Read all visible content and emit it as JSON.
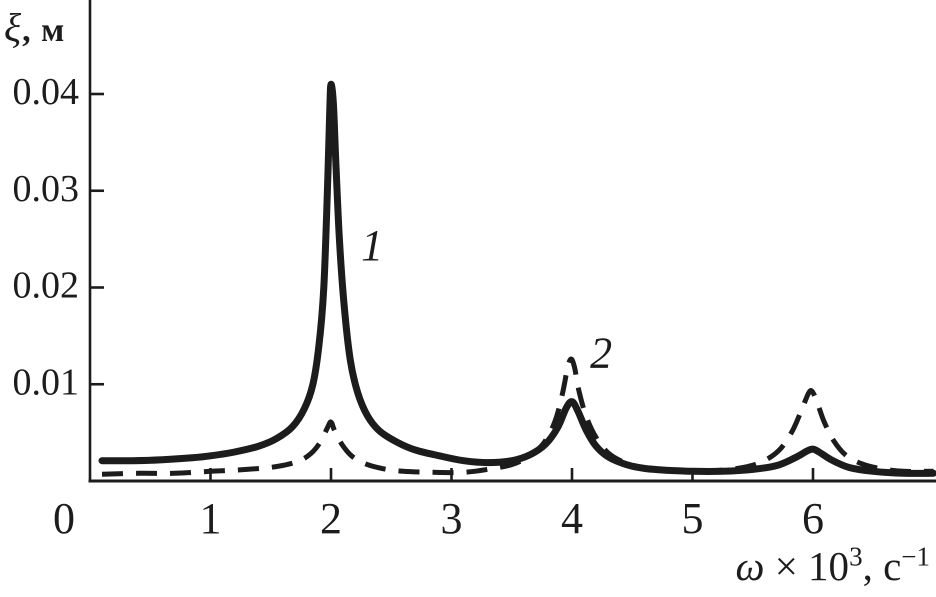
{
  "figure": {
    "background": "#ffffff",
    "ink_color": "#1c1c1c"
  },
  "chart_data": {
    "type": "line",
    "title": "",
    "xlabel": "ω × 10³, с⁻¹",
    "ylabel": "ξ, м",
    "xlabel_parts": [
      {
        "t": "ω"
      },
      {
        "t": " × 10"
      },
      {
        "t": "3"
      },
      {
        "t": ", с"
      },
      {
        "t": "−1"
      }
    ],
    "ylabel_parts": [
      {
        "t": "ξ"
      },
      {
        "t": ", м"
      }
    ],
    "xlim": [
      0,
      7.02
    ],
    "ylim": [
      0,
      0.0497
    ],
    "x_ticks": [
      0,
      1,
      2,
      3,
      4,
      5,
      6
    ],
    "x_tick_labels": [
      "0",
      "1",
      "2",
      "3",
      "4",
      "5",
      "6"
    ],
    "y_ticks": [
      0.01,
      0.02,
      0.03,
      0.04
    ],
    "y_tick_labels": [
      "0.01",
      "0.02",
      "0.03",
      "0.04"
    ],
    "grid": false,
    "legend_position": "none",
    "annotations": [
      {
        "text": "1",
        "x": 2.25,
        "y": 0.0245
      },
      {
        "text": "2",
        "x": 4.15,
        "y": 0.0134
      }
    ],
    "series": [
      {
        "name": "1",
        "style": "solid",
        "peaks": [
          {
            "x": 2.0,
            "y": 0.041
          },
          {
            "x": 4.0,
            "y": 0.0082
          },
          {
            "x": 6.0,
            "y": 0.0033
          }
        ],
        "points": [
          [
            0.1,
            0.0021
          ],
          [
            0.35,
            0.0021
          ],
          [
            0.6,
            0.0022
          ],
          [
            0.85,
            0.0024
          ],
          [
            1.0,
            0.0026
          ],
          [
            1.2,
            0.003
          ],
          [
            1.4,
            0.0036
          ],
          [
            1.55,
            0.0044
          ],
          [
            1.68,
            0.0056
          ],
          [
            1.78,
            0.0075
          ],
          [
            1.85,
            0.01
          ],
          [
            1.9,
            0.014
          ],
          [
            1.94,
            0.02
          ],
          [
            1.97,
            0.03
          ],
          [
            1.99,
            0.0385
          ],
          [
            2.0,
            0.041
          ],
          [
            2.02,
            0.039
          ],
          [
            2.04,
            0.033
          ],
          [
            2.07,
            0.025
          ],
          [
            2.11,
            0.018
          ],
          [
            2.16,
            0.0125
          ],
          [
            2.22,
            0.0092
          ],
          [
            2.3,
            0.0068
          ],
          [
            2.4,
            0.0052
          ],
          [
            2.55,
            0.004
          ],
          [
            2.7,
            0.0032
          ],
          [
            2.9,
            0.0026
          ],
          [
            3.1,
            0.0021
          ],
          [
            3.3,
            0.0019
          ],
          [
            3.5,
            0.0021
          ],
          [
            3.65,
            0.0027
          ],
          [
            3.78,
            0.0038
          ],
          [
            3.88,
            0.0055
          ],
          [
            3.95,
            0.0075
          ],
          [
            4.0,
            0.0082
          ],
          [
            4.05,
            0.0072
          ],
          [
            4.12,
            0.0052
          ],
          [
            4.2,
            0.0036
          ],
          [
            4.3,
            0.0025
          ],
          [
            4.45,
            0.0017
          ],
          [
            4.6,
            0.0013
          ],
          [
            4.8,
            0.0011
          ],
          [
            5.0,
            0.001
          ],
          [
            5.25,
            0.001
          ],
          [
            5.5,
            0.0012
          ],
          [
            5.7,
            0.0016
          ],
          [
            5.85,
            0.0024
          ],
          [
            5.95,
            0.0031
          ],
          [
            6.0,
            0.0033
          ],
          [
            6.05,
            0.003
          ],
          [
            6.15,
            0.0022
          ],
          [
            6.3,
            0.0014
          ],
          [
            6.5,
            0.001
          ],
          [
            6.75,
            0.0008
          ],
          [
            7.0,
            0.0008
          ]
        ]
      },
      {
        "name": "2",
        "style": "dashed",
        "peaks": [
          {
            "x": 2.0,
            "y": 0.0061
          },
          {
            "x": 4.0,
            "y": 0.0126
          },
          {
            "x": 6.0,
            "y": 0.0093
          }
        ],
        "points": [
          [
            0.1,
            0.0007
          ],
          [
            0.4,
            0.0008
          ],
          [
            0.7,
            0.0008
          ],
          [
            1.0,
            0.001
          ],
          [
            1.3,
            0.0012
          ],
          [
            1.55,
            0.0015
          ],
          [
            1.72,
            0.002
          ],
          [
            1.83,
            0.0028
          ],
          [
            1.91,
            0.004
          ],
          [
            1.97,
            0.0055
          ],
          [
            2.0,
            0.0061
          ],
          [
            2.03,
            0.0052
          ],
          [
            2.09,
            0.0038
          ],
          [
            2.17,
            0.0026
          ],
          [
            2.28,
            0.0018
          ],
          [
            2.42,
            0.0013
          ],
          [
            2.6,
            0.001
          ],
          [
            2.85,
            0.0009
          ],
          [
            3.1,
            0.0009
          ],
          [
            3.3,
            0.0012
          ],
          [
            3.5,
            0.0017
          ],
          [
            3.65,
            0.0026
          ],
          [
            3.77,
            0.004
          ],
          [
            3.86,
            0.0062
          ],
          [
            3.92,
            0.009
          ],
          [
            3.96,
            0.0115
          ],
          [
            3.99,
            0.0126
          ],
          [
            4.02,
            0.0118
          ],
          [
            4.06,
            0.0092
          ],
          [
            4.12,
            0.0066
          ],
          [
            4.2,
            0.0045
          ],
          [
            4.3,
            0.0029
          ],
          [
            4.42,
            0.002
          ],
          [
            4.58,
            0.0014
          ],
          [
            4.78,
            0.0011
          ],
          [
            5.0,
            0.001
          ],
          [
            5.22,
            0.0011
          ],
          [
            5.42,
            0.0014
          ],
          [
            5.58,
            0.002
          ],
          [
            5.72,
            0.0032
          ],
          [
            5.83,
            0.0052
          ],
          [
            5.91,
            0.0075
          ],
          [
            5.96,
            0.009
          ],
          [
            5.99,
            0.0093
          ],
          [
            6.03,
            0.0083
          ],
          [
            6.09,
            0.0062
          ],
          [
            6.17,
            0.0042
          ],
          [
            6.27,
            0.0027
          ],
          [
            6.4,
            0.0018
          ],
          [
            6.55,
            0.0013
          ],
          [
            6.75,
            0.001
          ],
          [
            7.0,
            0.001
          ]
        ]
      }
    ]
  }
}
